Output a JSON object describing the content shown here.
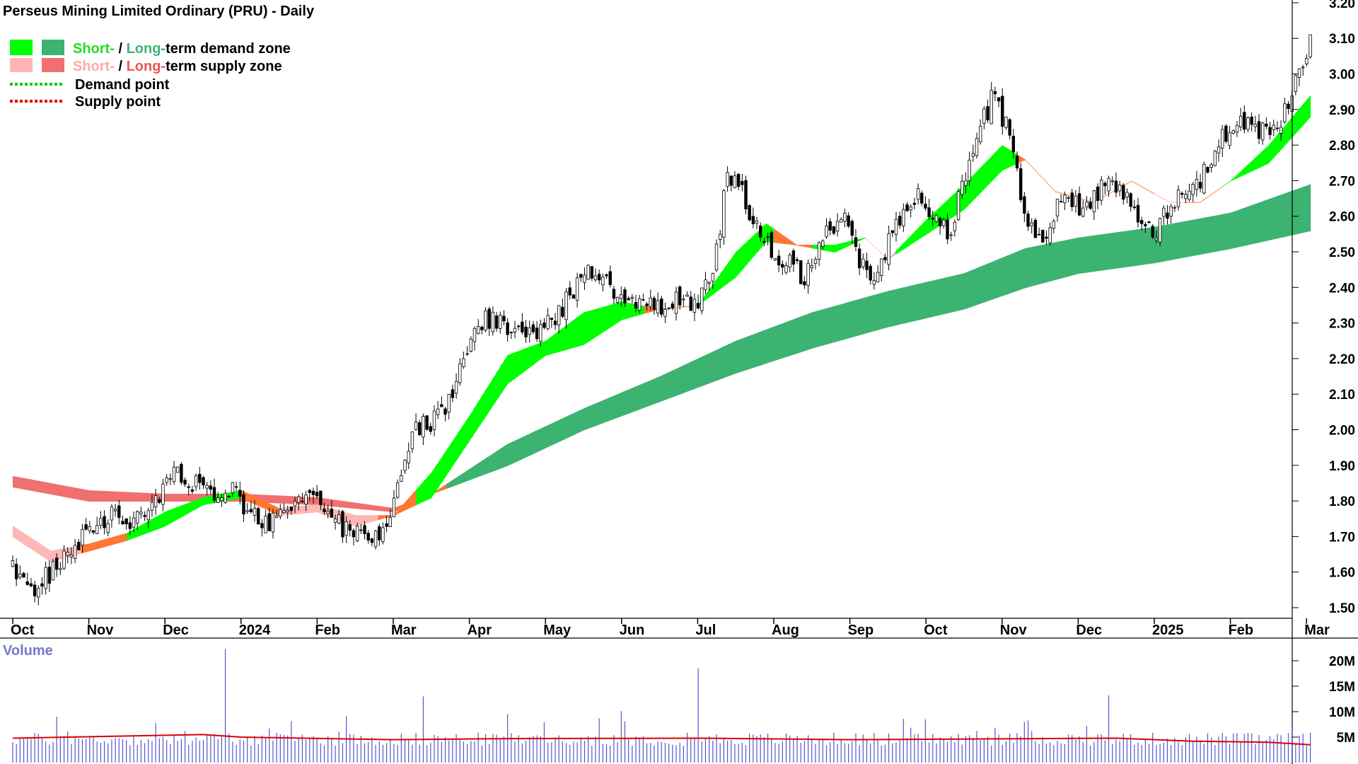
{
  "chart_data": {
    "type": "candlestick",
    "title": "Perseus Mining Limited Ordinary (PRU) - Daily",
    "legend": {
      "placement": "top-left",
      "demand_zone": {
        "short": "Short-",
        "sep": " / ",
        "long": "Long-",
        "rest": "term demand zone"
      },
      "supply_zone": {
        "short": "Short-",
        "sep": " / ",
        "long": "Long-",
        "rest": "term supply zone"
      },
      "demand_point": "Demand point",
      "supply_point": "Supply point"
    },
    "colors": {
      "short_demand": "#00ff00",
      "long_demand": "#3cb371",
      "short_supply": "#ffb6b6",
      "long_supply": "#f07070",
      "transition": "#ff7733",
      "demand_point": "#00cc00",
      "supply_point": "#dd0000",
      "volume_bar": "#5555cc",
      "volume_ma": "#dd0000",
      "volume_label": "#7777cc"
    },
    "price_axis": {
      "ylim": [
        1.45,
        3.2
      ],
      "ticks": [
        "1.50",
        "1.60",
        "1.70",
        "1.80",
        "1.90",
        "2.00",
        "2.10",
        "2.20",
        "2.30",
        "2.40",
        "2.50",
        "2.60",
        "2.70",
        "2.80",
        "2.90",
        "3.00",
        "3.10",
        "3.20"
      ]
    },
    "x_axis": {
      "ticks": [
        {
          "label": "Oct",
          "month": 0
        },
        {
          "label": "Nov",
          "month": 1
        },
        {
          "label": "Dec",
          "month": 2
        },
        {
          "label": "2024",
          "month": 3
        },
        {
          "label": "Feb",
          "month": 4
        },
        {
          "label": "Mar",
          "month": 5
        },
        {
          "label": "Apr",
          "month": 6
        },
        {
          "label": "May",
          "month": 7
        },
        {
          "label": "Jun",
          "month": 8
        },
        {
          "label": "Jul",
          "month": 9
        },
        {
          "label": "Aug",
          "month": 10
        },
        {
          "label": "Sep",
          "month": 11
        },
        {
          "label": "Oct",
          "month": 12
        },
        {
          "label": "Nov",
          "month": 13
        },
        {
          "label": "Dec",
          "month": 14
        },
        {
          "label": "2025",
          "month": 15
        },
        {
          "label": "Feb",
          "month": 16
        },
        {
          "label": "Mar",
          "month": 17
        }
      ]
    },
    "close_path": [
      [
        0,
        1.62
      ],
      [
        0.3,
        1.55
      ],
      [
        0.5,
        1.6
      ],
      [
        0.8,
        1.66
      ],
      [
        1.0,
        1.72
      ],
      [
        1.3,
        1.76
      ],
      [
        1.6,
        1.74
      ],
      [
        1.9,
        1.8
      ],
      [
        2.1,
        1.9
      ],
      [
        2.3,
        1.86
      ],
      [
        2.6,
        1.83
      ],
      [
        2.9,
        1.84
      ],
      [
        3.1,
        1.77
      ],
      [
        3.4,
        1.74
      ],
      [
        3.6,
        1.76
      ],
      [
        3.9,
        1.84
      ],
      [
        4.1,
        1.78
      ],
      [
        4.4,
        1.71
      ],
      [
        4.7,
        1.7
      ],
      [
        4.9,
        1.72
      ],
      [
        5.0,
        1.78
      ],
      [
        5.1,
        1.86
      ],
      [
        5.3,
        2.0
      ],
      [
        5.5,
        2.02
      ],
      [
        5.7,
        2.05
      ],
      [
        6.0,
        2.25
      ],
      [
        6.2,
        2.32
      ],
      [
        6.5,
        2.28
      ],
      [
        6.8,
        2.26
      ],
      [
        7.0,
        2.3
      ],
      [
        7.2,
        2.33
      ],
      [
        7.5,
        2.45
      ],
      [
        7.8,
        2.42
      ],
      [
        8.1,
        2.35
      ],
      [
        8.4,
        2.34
      ],
      [
        8.7,
        2.36
      ],
      [
        9.0,
        2.36
      ],
      [
        9.2,
        2.45
      ],
      [
        9.4,
        2.72
      ],
      [
        9.6,
        2.66
      ],
      [
        9.8,
        2.55
      ],
      [
        10.1,
        2.48
      ],
      [
        10.4,
        2.43
      ],
      [
        10.7,
        2.55
      ],
      [
        10.9,
        2.62
      ],
      [
        11.1,
        2.48
      ],
      [
        11.3,
        2.4
      ],
      [
        11.5,
        2.52
      ],
      [
        11.7,
        2.62
      ],
      [
        11.9,
        2.66
      ],
      [
        12.1,
        2.58
      ],
      [
        12.3,
        2.55
      ],
      [
        12.6,
        2.78
      ],
      [
        12.9,
        2.95
      ],
      [
        13.1,
        2.82
      ],
      [
        13.3,
        2.62
      ],
      [
        13.5,
        2.53
      ],
      [
        13.8,
        2.66
      ],
      [
        14.1,
        2.62
      ],
      [
        14.4,
        2.72
      ],
      [
        14.6,
        2.66
      ],
      [
        14.8,
        2.6
      ],
      [
        15.0,
        2.56
      ],
      [
        15.3,
        2.65
      ],
      [
        15.6,
        2.7
      ],
      [
        15.9,
        2.82
      ],
      [
        16.1,
        2.86
      ],
      [
        16.4,
        2.84
      ],
      [
        16.7,
        2.88
      ],
      [
        16.9,
        3.0
      ],
      [
        17.05,
        3.1
      ]
    ],
    "short_band_path": [
      [
        0,
        1.73,
        1.7
      ],
      [
        0.5,
        1.66,
        1.63
      ],
      [
        1.0,
        1.68,
        1.66
      ],
      [
        1.5,
        1.71,
        1.69
      ],
      [
        2.0,
        1.77,
        1.73
      ],
      [
        2.5,
        1.81,
        1.79
      ],
      [
        3.0,
        1.83,
        1.81
      ],
      [
        3.5,
        1.78,
        1.76
      ],
      [
        4.0,
        1.79,
        1.77
      ],
      [
        4.5,
        1.76,
        1.73
      ],
      [
        5.0,
        1.76,
        1.76
      ],
      [
        5.5,
        1.88,
        1.81
      ],
      [
        6.0,
        2.04,
        1.97
      ],
      [
        6.5,
        2.21,
        2.13
      ],
      [
        7.0,
        2.25,
        2.21
      ],
      [
        7.5,
        2.33,
        2.24
      ],
      [
        8.0,
        2.36,
        2.31
      ],
      [
        8.5,
        2.34,
        2.34
      ],
      [
        9.0,
        2.35,
        2.35
      ],
      [
        9.5,
        2.5,
        2.43
      ],
      [
        9.9,
        2.58,
        2.53
      ],
      [
        10.3,
        2.52,
        2.52
      ],
      [
        10.8,
        2.52,
        2.5
      ],
      [
        11.2,
        2.54,
        2.54
      ],
      [
        11.5,
        2.48,
        2.48
      ],
      [
        12.0,
        2.59,
        2.55
      ],
      [
        12.5,
        2.69,
        2.62
      ],
      [
        13.0,
        2.8,
        2.73
      ],
      [
        13.3,
        2.76,
        2.76
      ],
      [
        13.7,
        2.67,
        2.67
      ],
      [
        14.2,
        2.64,
        2.64
      ],
      [
        14.7,
        2.7,
        2.7
      ],
      [
        15.2,
        2.64,
        2.64
      ],
      [
        15.6,
        2.64,
        2.64
      ],
      [
        16.0,
        2.7,
        2.7
      ],
      [
        16.5,
        2.8,
        2.75
      ],
      [
        17.05,
        2.94,
        2.88
      ]
    ],
    "long_band_path": [
      [
        0,
        1.87,
        1.84
      ],
      [
        1.0,
        1.83,
        1.8
      ],
      [
        2.0,
        1.82,
        1.8
      ],
      [
        3.0,
        1.82,
        1.8
      ],
      [
        4.0,
        1.81,
        1.79
      ],
      [
        5.0,
        1.78,
        1.77
      ],
      [
        5.5,
        1.82,
        1.82
      ],
      [
        6.5,
        1.96,
        1.9
      ],
      [
        7.5,
        2.06,
        2.0
      ],
      [
        8.5,
        2.15,
        2.08
      ],
      [
        9.5,
        2.25,
        2.16
      ],
      [
        10.5,
        2.33,
        2.23
      ],
      [
        11.5,
        2.39,
        2.29
      ],
      [
        12.5,
        2.44,
        2.34
      ],
      [
        13.3,
        2.51,
        2.4
      ],
      [
        14.0,
        2.54,
        2.44
      ],
      [
        15.0,
        2.57,
        2.47
      ],
      [
        16.0,
        2.61,
        2.51
      ],
      [
        17.05,
        2.69,
        2.56
      ]
    ],
    "band_colors": {
      "short": [
        [
          "supply",
          0,
          0.9
        ],
        [
          "transition",
          0.9,
          1.5
        ],
        [
          "demand",
          1.5,
          3.0
        ],
        [
          "transition",
          3.0,
          3.5
        ],
        [
          "supply",
          3.5,
          4.8
        ],
        [
          "transition",
          4.8,
          5.3
        ],
        [
          "demand",
          5.3,
          8.3
        ],
        [
          "transition",
          8.3,
          9.0
        ],
        [
          "demand",
          9.0,
          10.0
        ],
        [
          "transition",
          10.0,
          10.5
        ],
        [
          "demand",
          10.5,
          11.2
        ],
        [
          "supply",
          11.2,
          11.6
        ],
        [
          "demand",
          11.6,
          13.2
        ],
        [
          "transition",
          13.2,
          14.6
        ],
        [
          "transition",
          14.6,
          15.0
        ],
        [
          "supply",
          15.0,
          15.4
        ],
        [
          "transition",
          15.4,
          15.9
        ],
        [
          "demand",
          15.9,
          17.05
        ]
      ],
      "long": [
        [
          "supply",
          0,
          5.0
        ],
        [
          "transition",
          5.0,
          5.7
        ],
        [
          "demand",
          5.7,
          17.05
        ]
      ]
    },
    "volume_axis": {
      "label": "Volume",
      "ticks": [
        {
          "v": 5,
          "label": "5M"
        },
        {
          "v": 10,
          "label": "10M"
        },
        {
          "v": 15,
          "label": "15M"
        },
        {
          "v": 20,
          "label": "20M"
        }
      ],
      "max": 24
    },
    "volume_spikes": [
      [
        2.8,
        22.3
      ],
      [
        9.0,
        18.5
      ],
      [
        14.4,
        13.2
      ],
      [
        5.4,
        13.0
      ],
      [
        8.0,
        10.1
      ],
      [
        6.5,
        9.5
      ],
      [
        0.6,
        9.0
      ],
      [
        12.0,
        8.5
      ],
      [
        13.3,
        8.0
      ],
      [
        16.8,
        7.0
      ]
    ],
    "volume_ma": [
      [
        0,
        4.8
      ],
      [
        2.5,
        5.5
      ],
      [
        3.0,
        5.0
      ],
      [
        5.0,
        4.5
      ],
      [
        6.5,
        4.7
      ],
      [
        9.0,
        4.8
      ],
      [
        11.0,
        4.5
      ],
      [
        13.5,
        4.7
      ],
      [
        14.5,
        4.8
      ],
      [
        15.5,
        4.2
      ],
      [
        16.5,
        4.0
      ],
      [
        17.05,
        3.5
      ]
    ],
    "session_count": 355
  }
}
